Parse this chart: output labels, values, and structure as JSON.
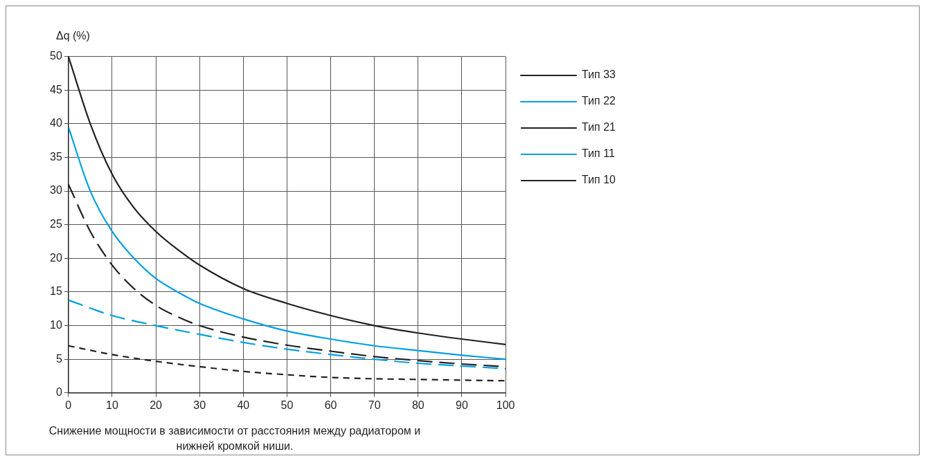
{
  "chart_data": {
    "type": "line",
    "ylabel": "Δq (%)",
    "annotations": [
      "Снижение мощности в зависимости от расстояния между радиатором и нижней кромкой ниши."
    ],
    "xlim": [
      0,
      100
    ],
    "ylim": [
      0,
      50
    ],
    "xticks": [
      0,
      10,
      20,
      30,
      40,
      50,
      60,
      70,
      80,
      90,
      100
    ],
    "yticks": [
      0,
      5,
      10,
      15,
      20,
      25,
      30,
      35,
      40,
      45,
      50
    ],
    "grid": true,
    "legend": "top right",
    "marker": "none",
    "series": [
      {
        "name": "Тип 33",
        "color": "#231f20",
        "line_style": "solid",
        "x": [
          0,
          5,
          10,
          15,
          20,
          25,
          30,
          40,
          50,
          60,
          70,
          80,
          90,
          100
        ],
        "values": [
          50,
          40,
          32.5,
          27.5,
          24,
          21.3,
          19,
          15.5,
          13.3,
          11.5,
          10,
          8.9,
          8,
          7.2
        ]
      },
      {
        "name": "Тип 22",
        "color": "#00a0e3",
        "line_style": "solid",
        "x": [
          0,
          5,
          10,
          15,
          20,
          25,
          30,
          40,
          50,
          60,
          70,
          80,
          90,
          100
        ],
        "values": [
          39.5,
          30,
          24,
          20,
          17,
          15,
          13.3,
          11,
          9.2,
          8,
          7,
          6.3,
          5.6,
          5
        ]
      },
      {
        "name": "Тип 21",
        "color": "#231f20",
        "line_style": "dashed",
        "x": [
          0,
          5,
          10,
          15,
          20,
          25,
          30,
          40,
          50,
          60,
          70,
          80,
          90,
          100
        ],
        "values": [
          31,
          24,
          19,
          15.5,
          13,
          11.3,
          10,
          8.3,
          7.1,
          6.2,
          5.4,
          4.8,
          4.3,
          3.9
        ]
      },
      {
        "name": "Тип 11",
        "color": "#00a0e3",
        "line_style": "dashed",
        "x": [
          0,
          10,
          20,
          30,
          40,
          50,
          60,
          70,
          80,
          90,
          100
        ],
        "values": [
          13.8,
          11.5,
          10,
          8.7,
          7.5,
          6.5,
          5.7,
          5,
          4.4,
          4,
          3.6
        ]
      },
      {
        "name": "Тип 10",
        "color": "#231f20",
        "line_style": "dotted",
        "x": [
          0,
          10,
          20,
          30,
          40,
          50,
          60,
          70,
          80,
          90,
          100
        ],
        "values": [
          7,
          5.7,
          4.7,
          3.9,
          3.2,
          2.7,
          2.3,
          2.1,
          2,
          1.9,
          1.8
        ]
      }
    ]
  }
}
